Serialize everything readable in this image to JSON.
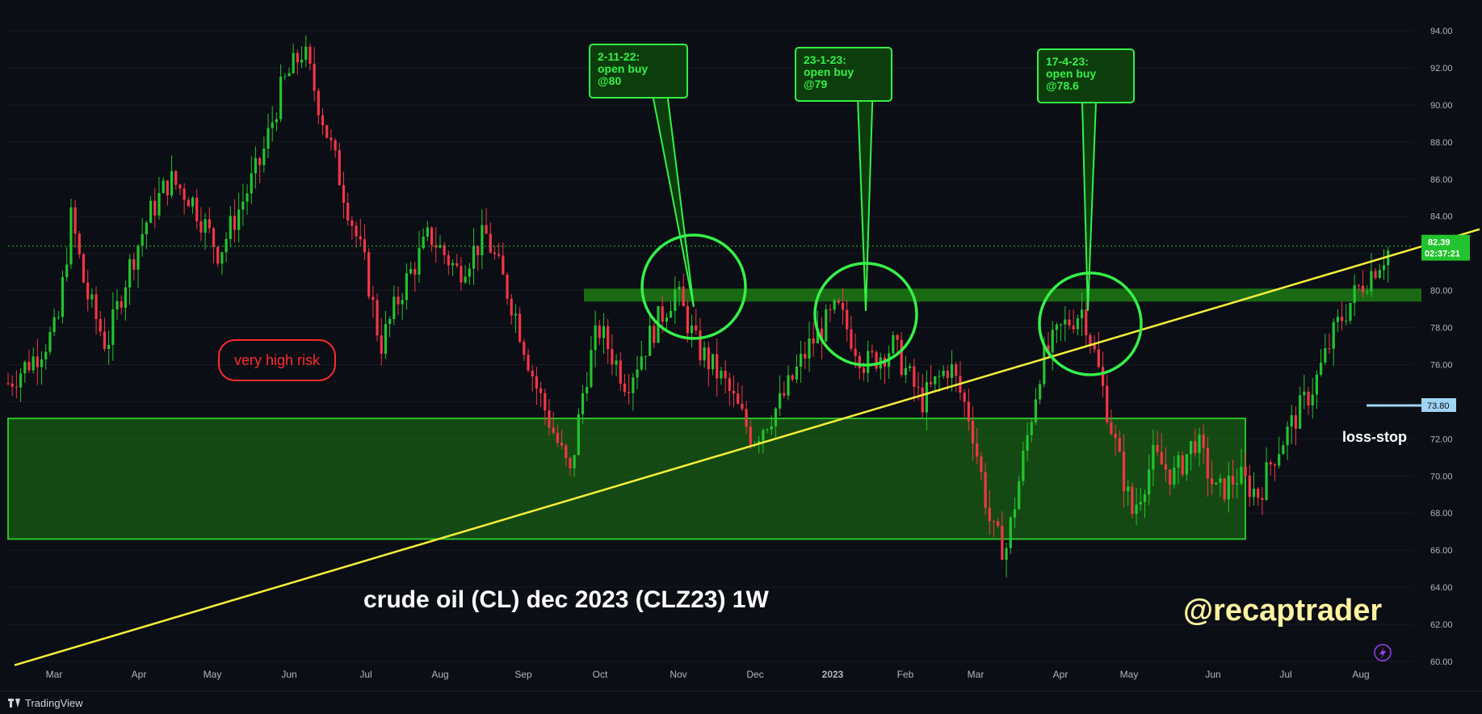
{
  "chart_data": {
    "type": "candlestick",
    "instrument_title": "crude oil (CL) dec 2023 (CLZ23) 1W",
    "watermark": "@recaptrader",
    "y_axis": {
      "min": 60,
      "max": 94,
      "ticks": [
        "94.00",
        "92.00",
        "90.00",
        "88.00",
        "86.00",
        "84.00",
        "82.00",
        "80.00",
        "78.00",
        "76.00",
        "74.00",
        "72.00",
        "70.00",
        "68.00",
        "66.00",
        "64.00",
        "62.00",
        "60.00"
      ]
    },
    "x_axis": {
      "labels": [
        "Mar",
        "Apr",
        "May",
        "Jun",
        "Jul",
        "Aug",
        "Sep",
        "Oct",
        "Nov",
        "Dec",
        "2023",
        "Feb",
        "Mar",
        "Apr",
        "May",
        "Jun",
        "Jul",
        "Aug"
      ]
    },
    "last_price": {
      "value": "82.39",
      "countdown": "02:37:21",
      "color": "#22c32e"
    },
    "loss_stop": {
      "value": "73.80",
      "label": "loss-stop",
      "color": "#9ed4f4"
    },
    "risk_label": {
      "text": "very high risk",
      "color": "#ff2b2b"
    },
    "zones": [
      {
        "name": "support-zone",
        "from": 66.6,
        "to": 73.1,
        "color": "#1d7a13"
      },
      {
        "name": "resistance-zone",
        "from": 79.4,
        "to": 80.1,
        "color": "#1d7a13"
      }
    ],
    "trendline": {
      "start": {
        "date": "2022-02",
        "price": 59.8
      },
      "end": {
        "date": "2023-08",
        "price": 83.3
      },
      "color": "#f5ef3a"
    },
    "annotations": [
      {
        "text_lines": [
          "2-11-22:",
          "open buy",
          "@80"
        ],
        "date": "2022-11-02",
        "price": 80
      },
      {
        "text_lines": [
          "23-1-23:",
          "open buy",
          "@79"
        ],
        "date": "2023-01-23",
        "price": 79
      },
      {
        "text_lines": [
          "17-4-23:",
          "open buy",
          "@78.6"
        ],
        "date": "2023-04-17",
        "price": 78.6
      }
    ],
    "price_path": [
      {
        "x": 0,
        "p": 75
      },
      {
        "x": 0.02,
        "p": 76.5
      },
      {
        "x": 0.035,
        "p": 78
      },
      {
        "x": 0.045,
        "p": 84
      },
      {
        "x": 0.055,
        "p": 80
      },
      {
        "x": 0.07,
        "p": 77
      },
      {
        "x": 0.085,
        "p": 81
      },
      {
        "x": 0.1,
        "p": 84
      },
      {
        "x": 0.115,
        "p": 86
      },
      {
        "x": 0.13,
        "p": 85
      },
      {
        "x": 0.15,
        "p": 82
      },
      {
        "x": 0.165,
        "p": 84.5
      },
      {
        "x": 0.18,
        "p": 87
      },
      {
        "x": 0.195,
        "p": 91
      },
      {
        "x": 0.21,
        "p": 93
      },
      {
        "x": 0.225,
        "p": 89
      },
      {
        "x": 0.24,
        "p": 85
      },
      {
        "x": 0.255,
        "p": 81
      },
      {
        "x": 0.265,
        "p": 77
      },
      {
        "x": 0.28,
        "p": 80
      },
      {
        "x": 0.3,
        "p": 83
      },
      {
        "x": 0.32,
        "p": 81
      },
      {
        "x": 0.34,
        "p": 83
      },
      {
        "x": 0.36,
        "p": 79
      },
      {
        "x": 0.375,
        "p": 75
      },
      {
        "x": 0.39,
        "p": 72
      },
      {
        "x": 0.4,
        "p": 70
      },
      {
        "x": 0.41,
        "p": 75
      },
      {
        "x": 0.42,
        "p": 78
      },
      {
        "x": 0.44,
        "p": 75
      },
      {
        "x": 0.46,
        "p": 78
      },
      {
        "x": 0.475,
        "p": 80
      },
      {
        "x": 0.49,
        "p": 77
      },
      {
        "x": 0.51,
        "p": 75
      },
      {
        "x": 0.53,
        "p": 72
      },
      {
        "x": 0.55,
        "p": 74
      },
      {
        "x": 0.57,
        "p": 77
      },
      {
        "x": 0.59,
        "p": 79
      },
      {
        "x": 0.61,
        "p": 76
      },
      {
        "x": 0.63,
        "p": 77
      },
      {
        "x": 0.65,
        "p": 74
      },
      {
        "x": 0.67,
        "p": 76
      },
      {
        "x": 0.685,
        "p": 73
      },
      {
        "x": 0.7,
        "p": 67
      },
      {
        "x": 0.71,
        "p": 66
      },
      {
        "x": 0.72,
        "p": 70
      },
      {
        "x": 0.735,
        "p": 76
      },
      {
        "x": 0.75,
        "p": 78
      },
      {
        "x": 0.765,
        "p": 79
      },
      {
        "x": 0.775,
        "p": 76
      },
      {
        "x": 0.79,
        "p": 71
      },
      {
        "x": 0.8,
        "p": 68
      },
      {
        "x": 0.815,
        "p": 71
      },
      {
        "x": 0.83,
        "p": 70
      },
      {
        "x": 0.845,
        "p": 72
      },
      {
        "x": 0.86,
        "p": 69
      },
      {
        "x": 0.875,
        "p": 70
      },
      {
        "x": 0.89,
        "p": 69
      },
      {
        "x": 0.9,
        "p": 71
      },
      {
        "x": 0.915,
        "p": 73
      },
      {
        "x": 0.93,
        "p": 75
      },
      {
        "x": 0.945,
        "p": 78
      },
      {
        "x": 0.96,
        "p": 80
      },
      {
        "x": 0.975,
        "p": 81.5
      },
      {
        "x": 0.985,
        "p": 82.4
      }
    ],
    "colors": {
      "up": "#22c32e",
      "down": "#f23645",
      "background": "#0c0e15",
      "annotation": "#36f048"
    }
  },
  "footer": {
    "brand": "TradingView"
  }
}
